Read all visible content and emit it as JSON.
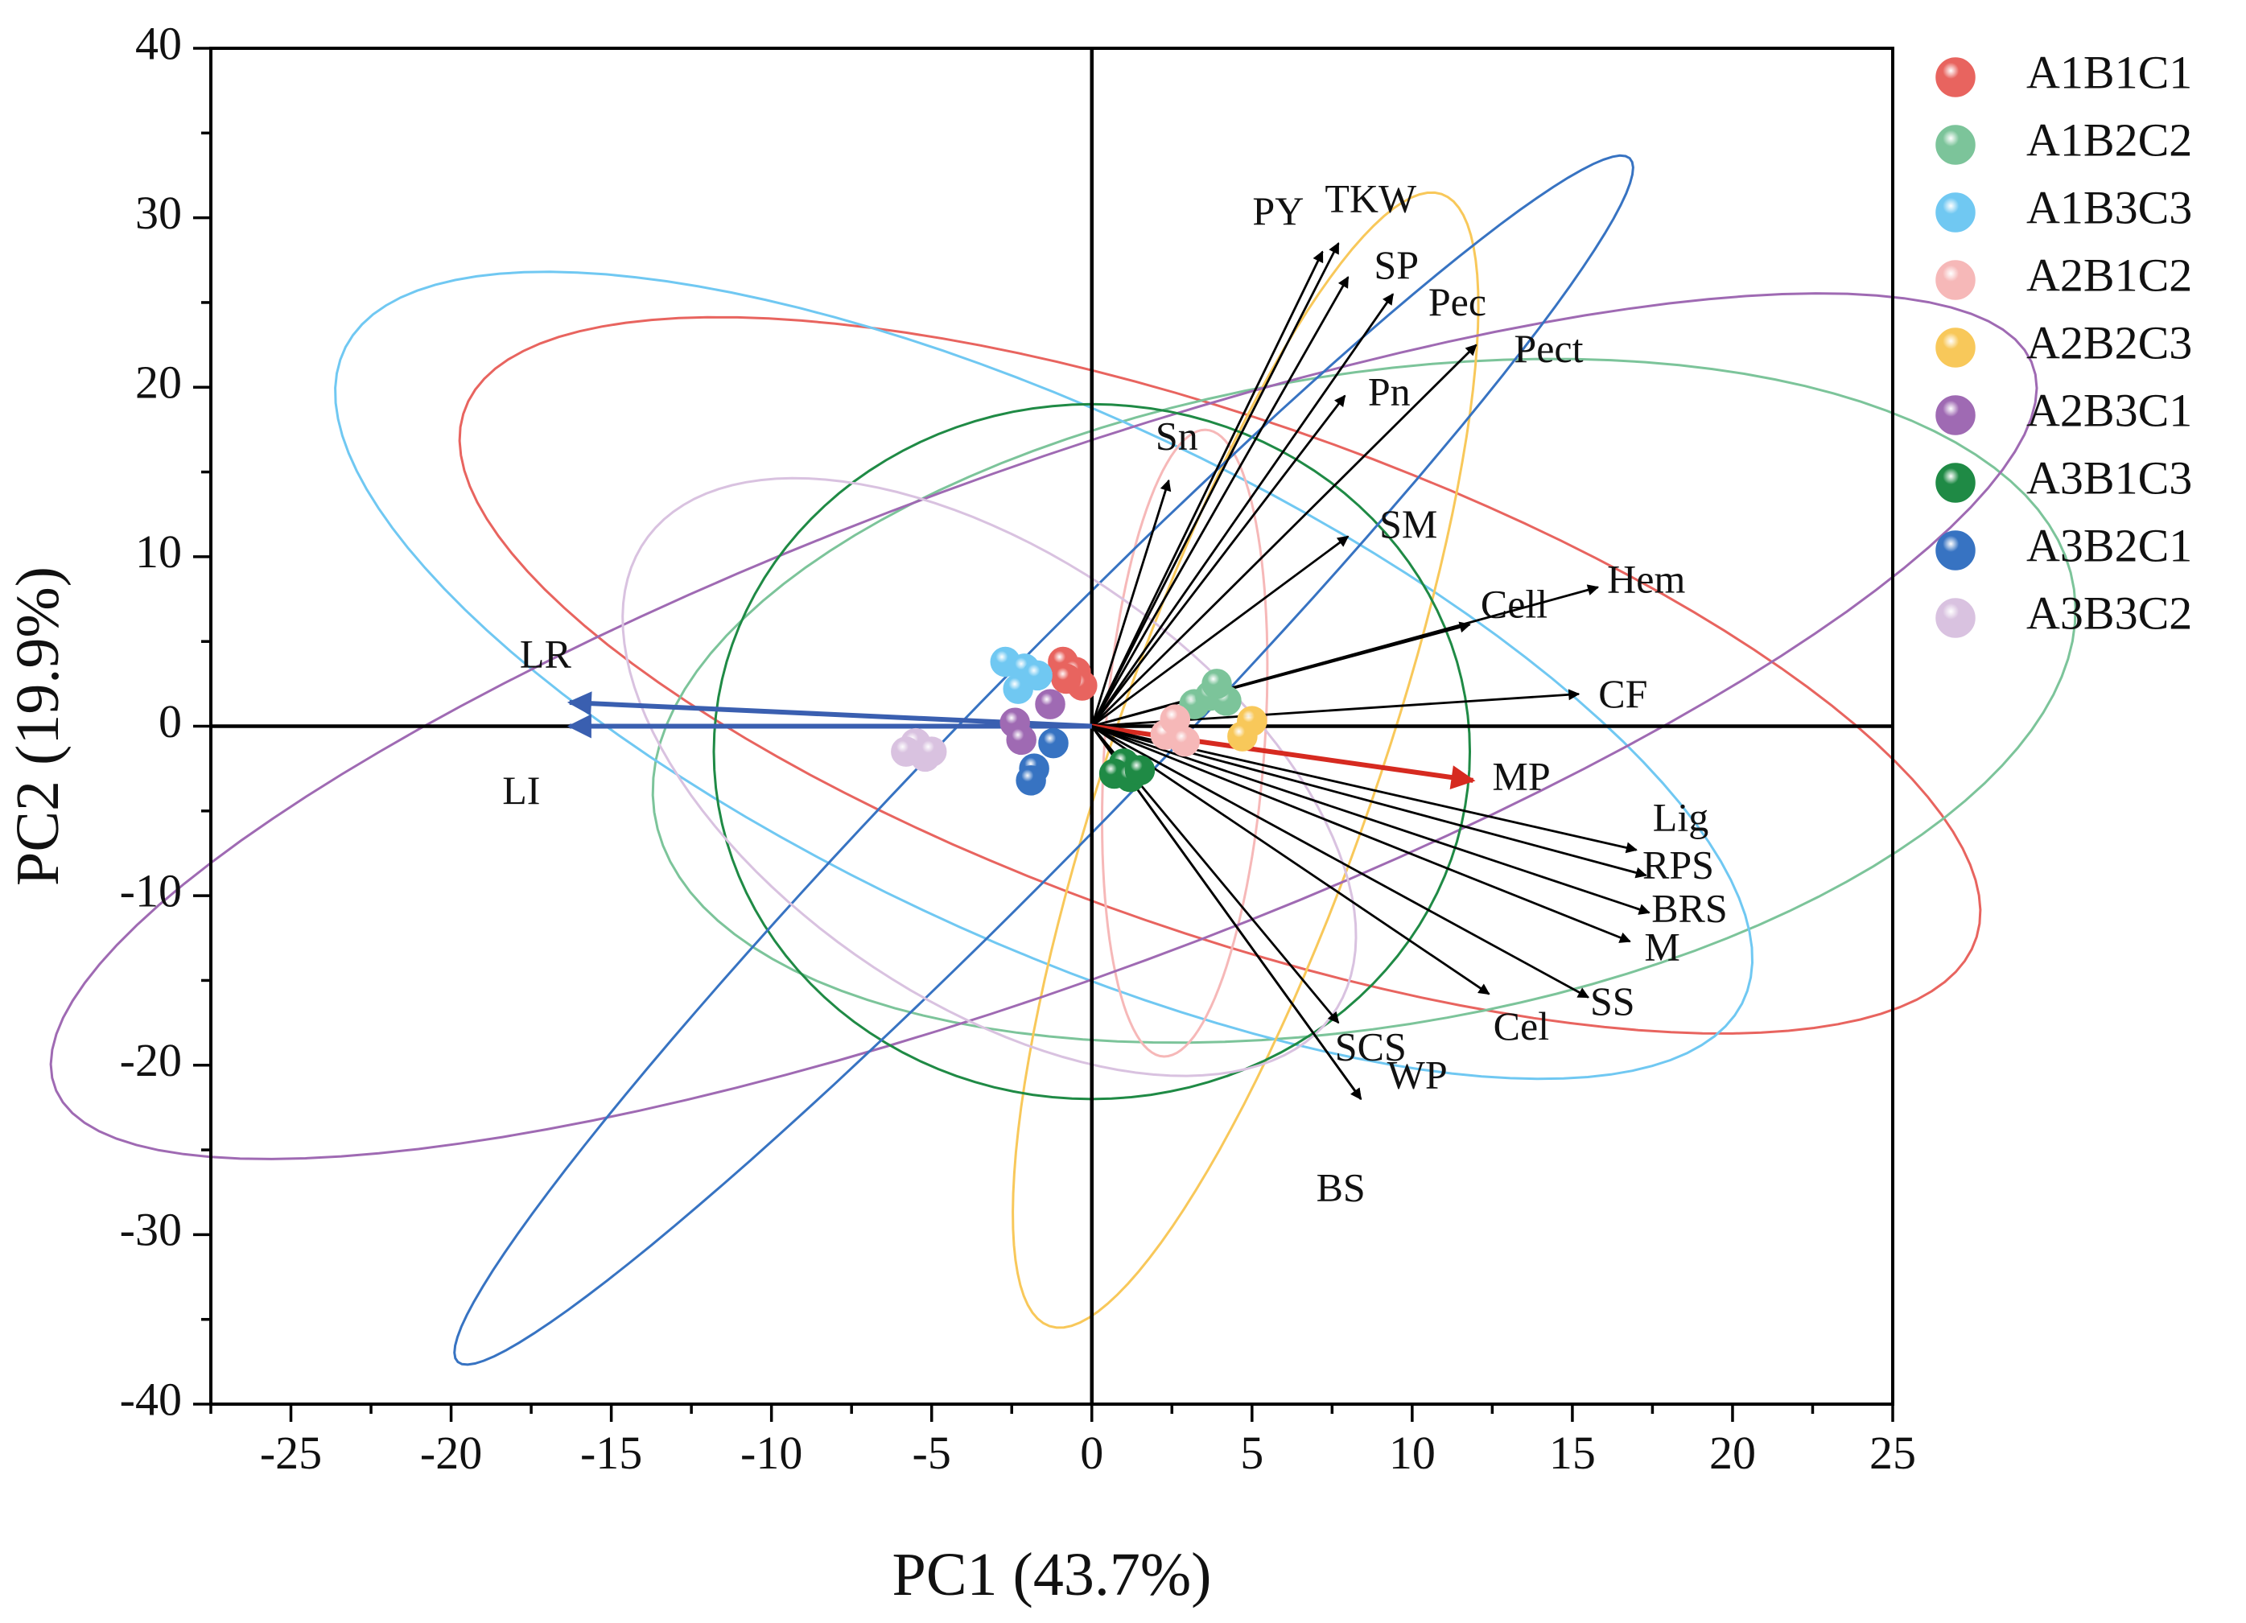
{
  "chart_data": {
    "type": "scatter",
    "subtype": "pca-biplot",
    "title": "",
    "xlabel": "PC1 (43.7%)",
    "ylabel": "PC2 (19.9%)",
    "xlim": [
      -27.5,
      25
    ],
    "ylim": [
      -40,
      40
    ],
    "xticks": [
      -25,
      -20,
      -15,
      -10,
      -5,
      0,
      5,
      10,
      15,
      20,
      25
    ],
    "yticks": [
      -40,
      -30,
      -20,
      -10,
      0,
      10,
      20,
      30,
      40
    ],
    "xtick_labels": [
      "-25",
      "-20",
      "-15",
      "-10",
      "-5",
      "0",
      "5",
      "10",
      "15",
      "20",
      "25"
    ],
    "ytick_labels": [
      "-40",
      "-30",
      "-20",
      "-10",
      "0",
      "10",
      "20",
      "30",
      "40"
    ],
    "grid": false,
    "legend_position": "right",
    "groups": [
      {
        "name": "A1B1C1",
        "color": "#e8645f",
        "points": [
          [
            -0.9,
            3.8
          ],
          [
            -0.5,
            3.2
          ],
          [
            -0.3,
            2.4
          ],
          [
            -0.8,
            2.8
          ]
        ],
        "ellipse": {
          "cx": 4.0,
          "cy": 3.0,
          "rx": 29.0,
          "ry": 13.0,
          "angle": -40
        }
      },
      {
        "name": "A1B2C2",
        "color": "#7cc49a",
        "points": [
          [
            3.2,
            1.3
          ],
          [
            3.7,
            1.8
          ],
          [
            4.2,
            1.5
          ],
          [
            3.9,
            2.5
          ]
        ],
        "ellipse": {
          "cx": 8.5,
          "cy": 1.5,
          "rx": 24.0,
          "ry": 18.0,
          "angle": 35
        }
      },
      {
        "name": "A1B3C3",
        "color": "#70c8f2",
        "points": [
          [
            -2.7,
            3.8
          ],
          [
            -2.1,
            3.4
          ],
          [
            -2.3,
            2.2
          ],
          [
            -1.7,
            3.0
          ]
        ],
        "ellipse": {
          "cx": -1.5,
          "cy": 3.0,
          "rx": 30.0,
          "ry": 12.5,
          "angle": -48
        }
      },
      {
        "name": "A2B1C2",
        "color": "#f6b8b8",
        "points": [
          [
            2.3,
            -0.5
          ],
          [
            2.6,
            0.4
          ],
          [
            2.9,
            -0.9
          ]
        ],
        "ellipse": {
          "cx": 2.9,
          "cy": -1.0,
          "rx": 18.5,
          "ry": 2.5,
          "angle": 88
        }
      },
      {
        "name": "A2B2C3",
        "color": "#f8c85a",
        "points": [
          [
            5.0,
            0.3
          ],
          [
            4.7,
            -0.6
          ]
        ],
        "ellipse": {
          "cx": 4.8,
          "cy": -2.0,
          "rx": 34.0,
          "ry": 4.3,
          "angle": 80
        }
      },
      {
        "name": "A2B3C1",
        "color": "#9f6ab3",
        "points": [
          [
            -2.4,
            0.2
          ],
          [
            -1.3,
            1.3
          ],
          [
            -2.2,
            -0.8
          ]
        ],
        "ellipse": {
          "cx": -1.5,
          "cy": 0.0,
          "rx": 38.0,
          "ry": 13.0,
          "angle": 38
        }
      },
      {
        "name": "A3B1C3",
        "color": "#1f8a45",
        "points": [
          [
            1.0,
            -2.2
          ],
          [
            0.7,
            -2.8
          ],
          [
            1.2,
            -3.0
          ],
          [
            1.5,
            -2.6
          ]
        ],
        "ellipse": {
          "cx": 0.0,
          "cy": -1.5,
          "rx": 11.8,
          "ry": 20.5,
          "angle": 0
        }
      },
      {
        "name": "A3B2C1",
        "color": "#3773c2",
        "points": [
          [
            -1.2,
            -1.0
          ],
          [
            -1.8,
            -2.5
          ],
          [
            -1.9,
            -3.2
          ]
        ],
        "ellipse": {
          "cx": -1.5,
          "cy": -2.0,
          "rx": 40.0,
          "ry": 3.3,
          "angle": 63
        }
      },
      {
        "name": "A3B3C2",
        "color": "#d9c2e0",
        "points": [
          [
            -5.5,
            -1.0
          ],
          [
            -5.2,
            -1.8
          ],
          [
            -5.8,
            -1.5
          ],
          [
            -5.0,
            -1.5
          ]
        ],
        "ellipse": {
          "cx": -3.2,
          "cy": -3.0,
          "rx": 19.0,
          "ry": 9.0,
          "angle": -65
        }
      }
    ],
    "vectors": [
      {
        "name": "PY",
        "x": 7.2,
        "y": 28.0,
        "color": "#000000"
      },
      {
        "name": "TKW",
        "x": 7.7,
        "y": 28.5,
        "color": "#000000"
      },
      {
        "name": "SP",
        "x": 8.0,
        "y": 26.5,
        "color": "#000000"
      },
      {
        "name": "Pec",
        "x": 9.4,
        "y": 25.5,
        "color": "#000000"
      },
      {
        "name": "Pect",
        "x": 12.0,
        "y": 22.5,
        "color": "#000000"
      },
      {
        "name": "Pn",
        "x": 7.9,
        "y": 19.5,
        "color": "#000000"
      },
      {
        "name": "Sn",
        "x": 2.4,
        "y": 14.5,
        "color": "#000000"
      },
      {
        "name": "SM",
        "x": 8.0,
        "y": 11.2,
        "color": "#000000"
      },
      {
        "name": "Cell",
        "x": 11.8,
        "y": 6.0,
        "color": "#000000"
      },
      {
        "name": "Hem",
        "x": 15.8,
        "y": 8.2,
        "color": "#000000"
      },
      {
        "name": "CF",
        "x": 15.2,
        "y": 1.9,
        "color": "#000000"
      },
      {
        "name": "MP",
        "x": 11.9,
        "y": -3.2,
        "color": "#d62a20"
      },
      {
        "name": "Lig",
        "x": 17.0,
        "y": -7.3,
        "color": "#000000"
      },
      {
        "name": "RPS",
        "x": 17.3,
        "y": -8.8,
        "color": "#000000"
      },
      {
        "name": "BRS",
        "x": 17.4,
        "y": -11.0,
        "color": "#000000"
      },
      {
        "name": "M",
        "x": 16.8,
        "y": -12.7,
        "color": "#000000"
      },
      {
        "name": "SS",
        "x": 15.5,
        "y": -16.0,
        "color": "#000000"
      },
      {
        "name": "Cel",
        "x": 12.4,
        "y": -15.8,
        "color": "#000000"
      },
      {
        "name": "SCS",
        "x": 7.7,
        "y": -17.5,
        "color": "#000000"
      },
      {
        "name": "WP",
        "x": 8.4,
        "y": -22.0,
        "color": "#000000"
      },
      {
        "name": "BS",
        "x": 8.4,
        "y": -22.0,
        "color": "#000000"
      },
      {
        "name": "LR",
        "x": -16.3,
        "y": 1.4,
        "color": "#3a5fb0"
      },
      {
        "name": "LI",
        "x": -16.3,
        "y": 0.0,
        "color": "#3a5fb0"
      }
    ]
  }
}
